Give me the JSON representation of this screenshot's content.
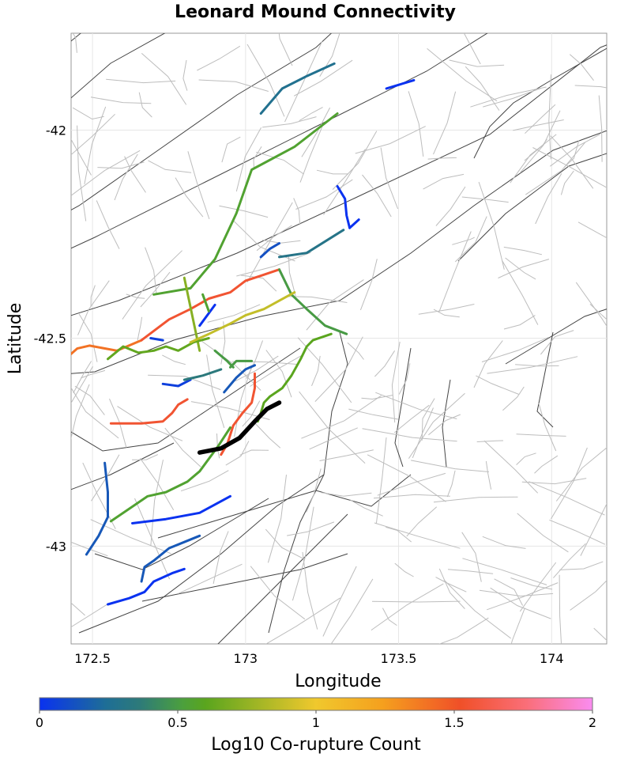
{
  "chart_data": {
    "type": "map-lines",
    "title": "Leonard Mound Connectivity",
    "xlabel": "Longitude",
    "ylabel": "Latitude",
    "xlim": [
      172.43,
      174.18
    ],
    "ylim": [
      -43.235,
      -41.767
    ],
    "x_ticks": [
      172.5,
      173,
      173.5,
      174
    ],
    "x_tick_labels": [
      "172.5",
      "173",
      "173.5",
      "174"
    ],
    "y_ticks": [
      -42,
      -42.5,
      -43
    ],
    "y_tick_labels": [
      "-42",
      "-42.5",
      "-43"
    ],
    "grid": true,
    "colorbar": {
      "label": "Log10 Co-rupture Count",
      "range": [
        0,
        2
      ],
      "ticks": [
        0,
        0.5,
        1,
        1.5,
        2
      ],
      "tick_labels": [
        "0",
        "0.5",
        "1",
        "1.5",
        "2"
      ],
      "colormap": [
        [
          0.0,
          "#0a32f0"
        ],
        [
          0.12,
          "#1e6e96"
        ],
        [
          0.18,
          "#2d7a7a"
        ],
        [
          0.26,
          "#4ca03c"
        ],
        [
          0.3,
          "#5aa51e"
        ],
        [
          0.5,
          "#f0c82d"
        ],
        [
          0.62,
          "#f5a01e"
        ],
        [
          0.76,
          "#f05028"
        ],
        [
          0.88,
          "#fa6e78"
        ],
        [
          1.0,
          "#fa8cf0"
        ]
      ]
    },
    "source_fault": {
      "name": "Leonard Mound",
      "color": "#000000",
      "points": [
        [
          172.85,
          -42.775
        ],
        [
          172.92,
          -42.765
        ],
        [
          172.98,
          -42.74
        ],
        [
          173.03,
          -42.7
        ],
        [
          173.07,
          -42.67
        ],
        [
          173.11,
          -42.655
        ]
      ]
    },
    "co_rupture_faults": [
      {
        "v": 0.0,
        "points": [
          [
            173.46,
            -41.9
          ],
          [
            173.55,
            -41.88
          ]
        ]
      },
      {
        "v": 0.27,
        "points": [
          [
            173.05,
            -41.96
          ],
          [
            173.12,
            -41.9
          ],
          [
            173.2,
            -41.87
          ],
          [
            173.29,
            -41.84
          ]
        ]
      },
      {
        "v": 0.55,
        "points": [
          [
            172.7,
            -42.395
          ],
          [
            172.82,
            -42.38
          ],
          [
            172.9,
            -42.31
          ],
          [
            172.97,
            -42.2
          ],
          [
            173.02,
            -42.095
          ],
          [
            173.16,
            -42.04
          ],
          [
            173.3,
            -41.96
          ]
        ]
      },
      {
        "v": 0.0,
        "points": [
          [
            173.3,
            -42.135
          ],
          [
            173.325,
            -42.165
          ],
          [
            173.33,
            -42.205
          ],
          [
            173.34,
            -42.235
          ]
        ]
      },
      {
        "v": 0.0,
        "points": [
          [
            173.34,
            -42.235
          ],
          [
            173.37,
            -42.215
          ]
        ]
      },
      {
        "v": 0.3,
        "points": [
          [
            173.11,
            -42.305
          ],
          [
            173.2,
            -42.295
          ],
          [
            173.32,
            -42.24
          ]
        ]
      },
      {
        "v": 0.12,
        "points": [
          [
            173.05,
            -42.305
          ],
          [
            173.08,
            -42.285
          ],
          [
            173.11,
            -42.272
          ]
        ]
      },
      {
        "v": 1.4,
        "points": [
          [
            172.38,
            -42.57
          ],
          [
            172.45,
            -42.525
          ],
          [
            172.49,
            -42.518
          ],
          [
            172.58,
            -42.53
          ],
          [
            172.66,
            -42.505
          ]
        ]
      },
      {
        "v": 1.55,
        "points": [
          [
            172.66,
            -42.505
          ],
          [
            172.75,
            -42.455
          ],
          [
            172.82,
            -42.43
          ],
          [
            172.88,
            -42.405
          ],
          [
            172.95,
            -42.39
          ],
          [
            173.0,
            -42.362
          ],
          [
            173.05,
            -42.35
          ],
          [
            173.11,
            -42.335
          ]
        ]
      },
      {
        "v": 0.72,
        "points": [
          [
            172.8,
            -42.355
          ],
          [
            172.85,
            -42.53
          ]
        ]
      },
      {
        "v": 0.5,
        "points": [
          [
            173.11,
            -42.335
          ],
          [
            173.15,
            -42.395
          ],
          [
            173.2,
            -42.43
          ],
          [
            173.26,
            -42.47
          ],
          [
            173.33,
            -42.49
          ]
        ]
      },
      {
        "v": 0.05,
        "points": [
          [
            172.69,
            -42.5
          ],
          [
            172.73,
            -42.505
          ]
        ]
      },
      {
        "v": 0.0,
        "points": [
          [
            172.85,
            -42.47
          ],
          [
            172.9,
            -42.42
          ]
        ]
      },
      {
        "v": 0.62,
        "points": [
          [
            172.55,
            -42.55
          ],
          [
            172.6,
            -42.52
          ],
          [
            172.65,
            -42.535
          ],
          [
            172.7,
            -42.53
          ],
          [
            172.74,
            -42.52
          ],
          [
            172.78,
            -42.53
          ],
          [
            172.83,
            -42.51
          ],
          [
            172.88,
            -42.5
          ]
        ]
      },
      {
        "v": 0.88,
        "points": [
          [
            172.82,
            -42.51
          ],
          [
            172.88,
            -42.49
          ],
          [
            172.95,
            -42.465
          ],
          [
            173.0,
            -42.445
          ],
          [
            173.06,
            -42.43
          ],
          [
            173.11,
            -42.41
          ],
          [
            173.16,
            -42.39
          ]
        ]
      },
      {
        "v": 0.55,
        "points": [
          [
            172.86,
            -42.395
          ],
          [
            172.88,
            -42.435
          ]
        ]
      },
      {
        "v": 0.5,
        "points": [
          [
            172.9,
            -42.53
          ],
          [
            172.94,
            -42.555
          ],
          [
            172.96,
            -42.57
          ]
        ]
      },
      {
        "v": 0.05,
        "points": [
          [
            172.73,
            -42.61
          ],
          [
            172.78,
            -42.615
          ],
          [
            172.82,
            -42.6
          ]
        ]
      },
      {
        "v": 0.35,
        "points": [
          [
            172.8,
            -42.6
          ],
          [
            172.86,
            -42.59
          ],
          [
            172.92,
            -42.575
          ]
        ]
      },
      {
        "v": 0.15,
        "points": [
          [
            172.93,
            -42.63
          ],
          [
            172.97,
            -42.595
          ],
          [
            173.0,
            -42.575
          ],
          [
            173.03,
            -42.565
          ]
        ]
      },
      {
        "v": 0.5,
        "points": [
          [
            172.95,
            -42.57
          ],
          [
            172.97,
            -42.555
          ],
          [
            173.0,
            -42.555
          ],
          [
            173.02,
            -42.555
          ]
        ]
      },
      {
        "v": 1.55,
        "points": [
          [
            172.92,
            -42.78
          ],
          [
            172.94,
            -42.755
          ],
          [
            172.96,
            -42.71
          ],
          [
            172.99,
            -42.68
          ],
          [
            173.02,
            -42.655
          ],
          [
            173.03,
            -42.62
          ],
          [
            173.03,
            -42.585
          ]
        ]
      },
      {
        "v": 0.6,
        "points": [
          [
            173.04,
            -42.7
          ],
          [
            173.05,
            -42.68
          ],
          [
            173.06,
            -42.655
          ],
          [
            173.08,
            -42.64
          ],
          [
            173.12,
            -42.62
          ],
          [
            173.15,
            -42.59
          ],
          [
            173.18,
            -42.55
          ],
          [
            173.2,
            -42.52
          ],
          [
            173.22,
            -42.505
          ],
          [
            173.28,
            -42.49
          ]
        ]
      },
      {
        "v": 1.55,
        "points": [
          [
            172.56,
            -42.705
          ],
          [
            172.66,
            -42.705
          ],
          [
            172.73,
            -42.7
          ],
          [
            172.76,
            -42.68
          ],
          [
            172.78,
            -42.66
          ],
          [
            172.81,
            -42.647
          ]
        ]
      },
      {
        "v": 0.55,
        "points": [
          [
            172.56,
            -42.94
          ],
          [
            172.62,
            -42.91
          ],
          [
            172.68,
            -42.88
          ],
          [
            172.74,
            -42.87
          ],
          [
            172.81,
            -42.845
          ],
          [
            172.85,
            -42.82
          ],
          [
            172.91,
            -42.76
          ],
          [
            172.95,
            -42.715
          ]
        ]
      },
      {
        "v": 0.15,
        "points": [
          [
            172.48,
            -43.02
          ],
          [
            172.52,
            -42.975
          ],
          [
            172.55,
            -42.93
          ],
          [
            172.55,
            -42.87
          ],
          [
            172.54,
            -42.8
          ]
        ]
      },
      {
        "v": 0.0,
        "points": [
          [
            172.63,
            -42.945
          ],
          [
            172.74,
            -42.935
          ],
          [
            172.85,
            -42.92
          ],
          [
            172.9,
            -42.9
          ],
          [
            172.95,
            -42.88
          ]
        ]
      },
      {
        "v": 0.15,
        "points": [
          [
            172.66,
            -43.085
          ],
          [
            172.67,
            -43.05
          ],
          [
            172.7,
            -43.035
          ],
          [
            172.75,
            -43.005
          ],
          [
            172.8,
            -42.99
          ],
          [
            172.85,
            -42.975
          ]
        ]
      },
      {
        "v": 0.0,
        "points": [
          [
            172.55,
            -43.14
          ],
          [
            172.62,
            -43.125
          ],
          [
            172.67,
            -43.11
          ],
          [
            172.7,
            -43.085
          ],
          [
            172.76,
            -43.065
          ],
          [
            172.8,
            -43.055
          ]
        ]
      }
    ]
  }
}
